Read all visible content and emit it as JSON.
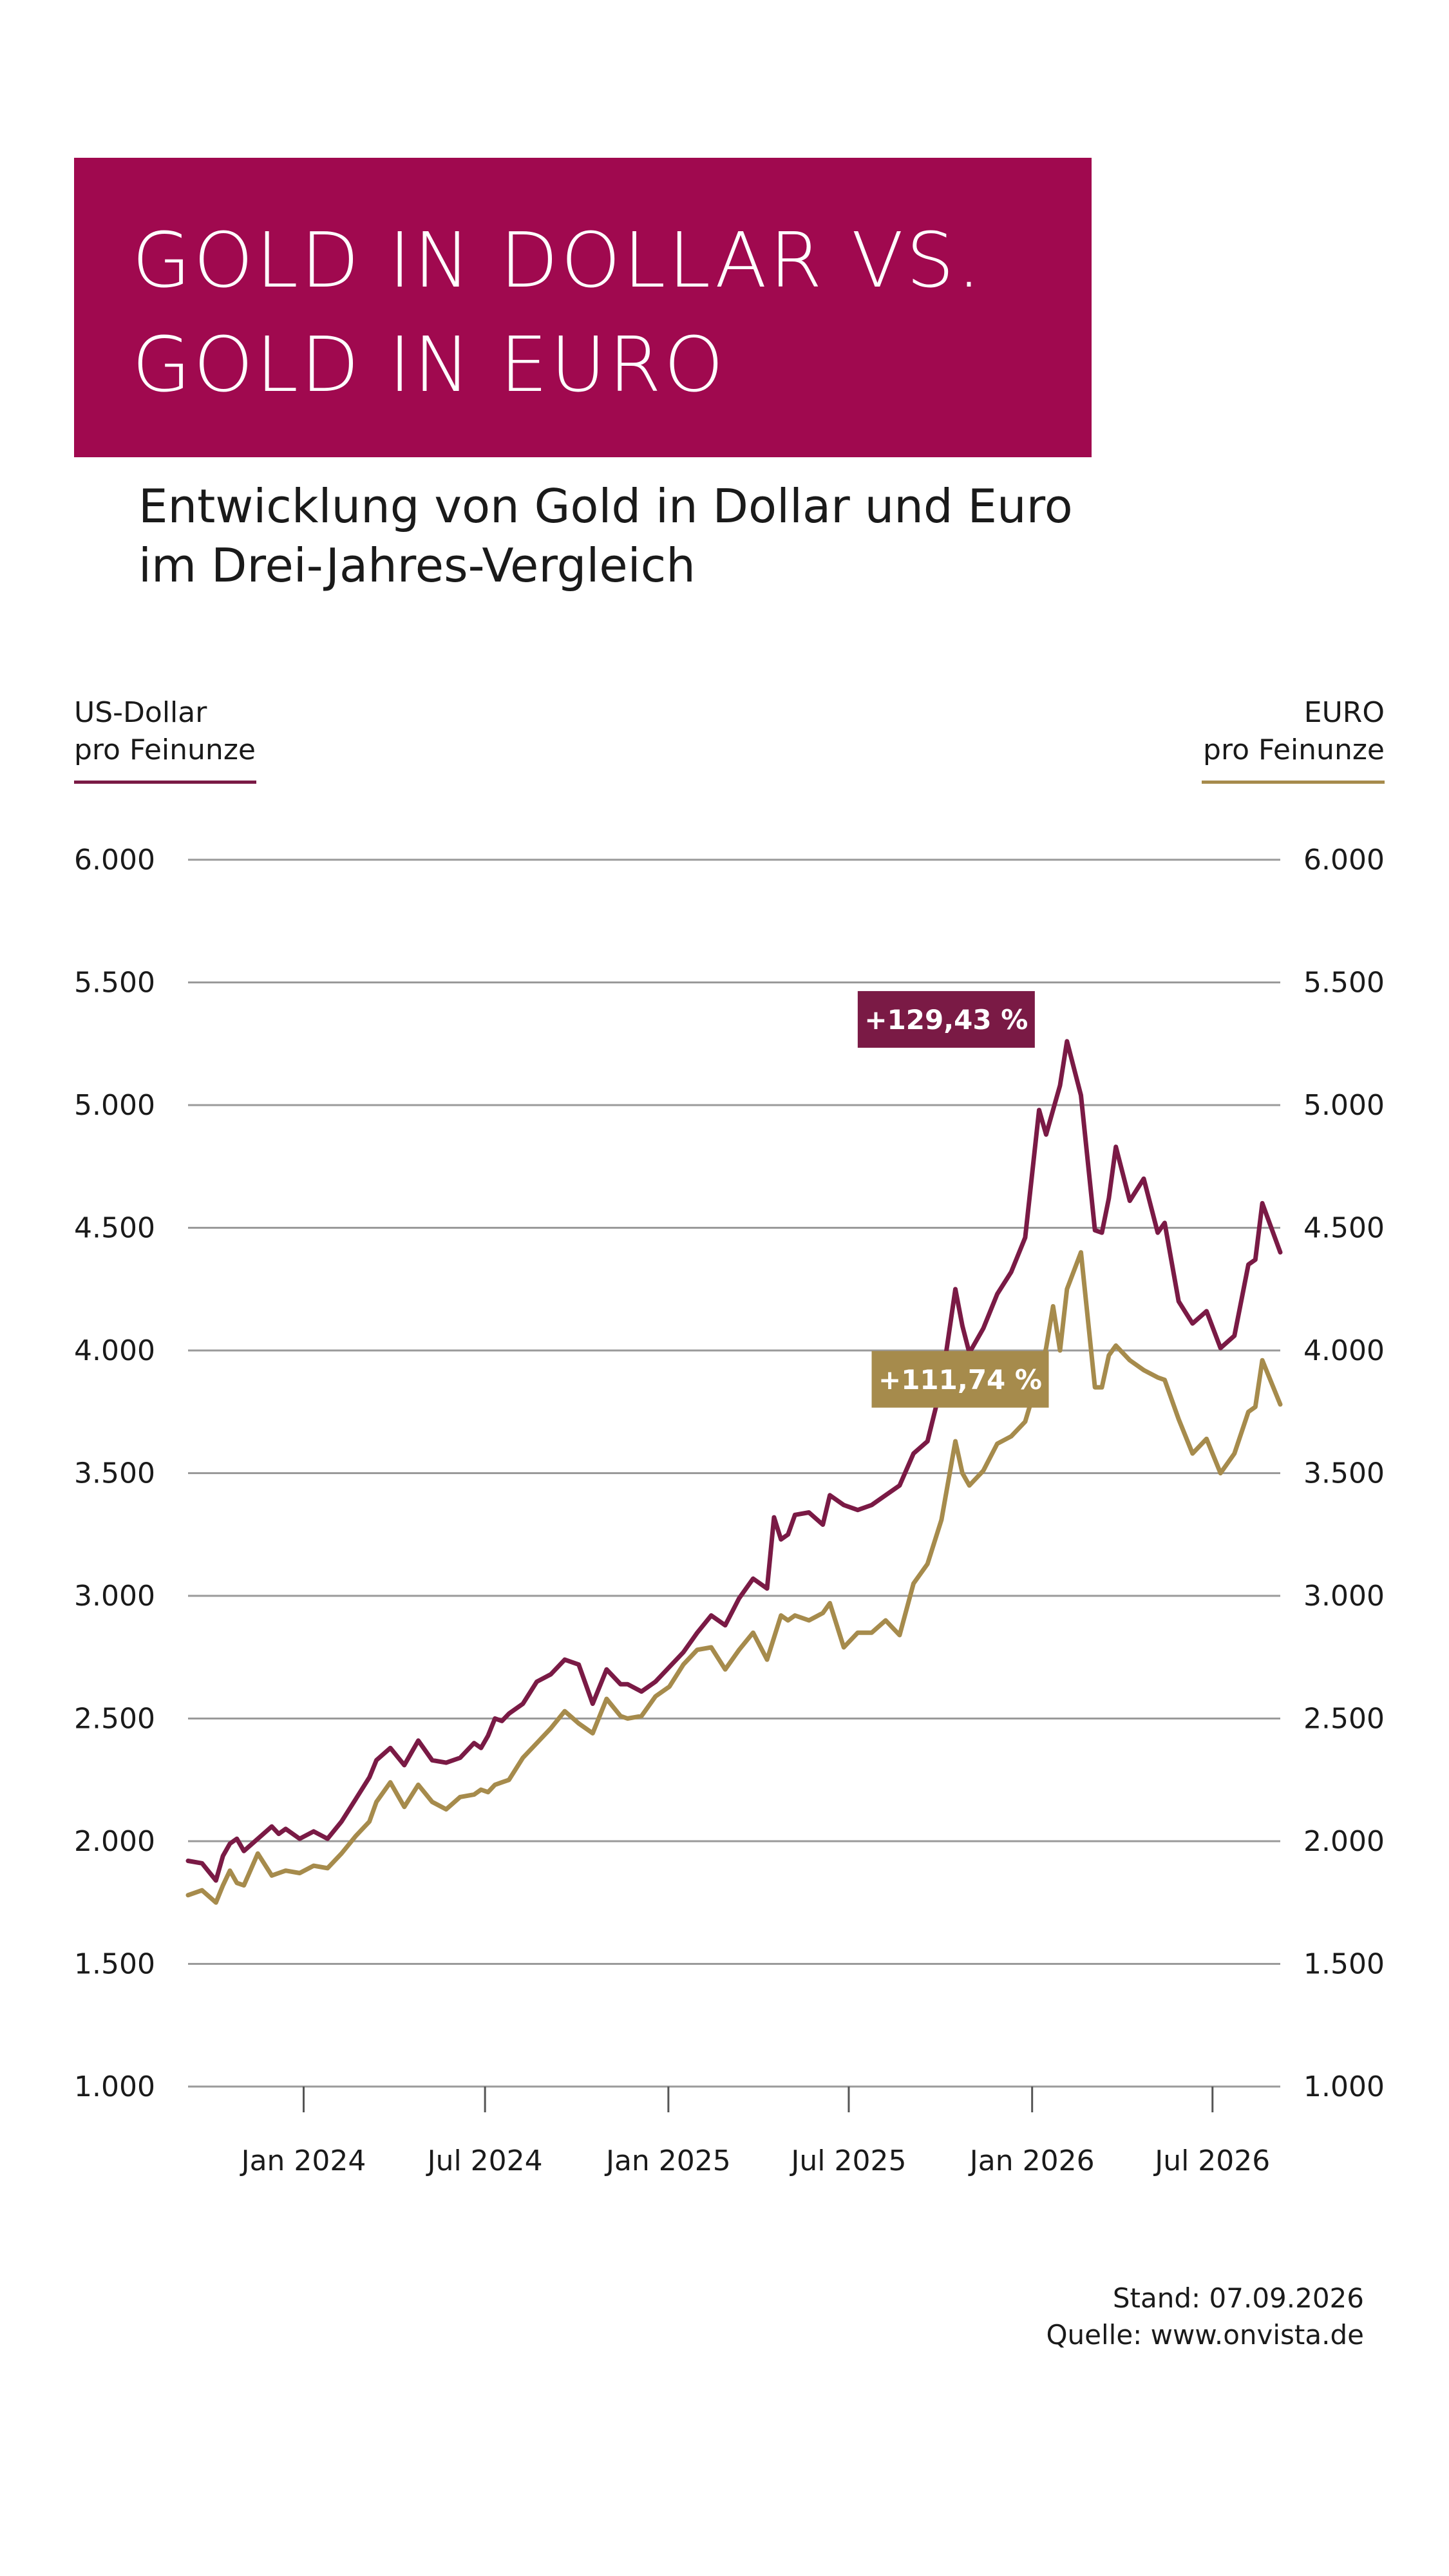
{
  "title": {
    "line1": "GOLD IN DOLLAR VS.",
    "line2": "GOLD IN EURO"
  },
  "subtitle": {
    "line1": "Entwicklung von Gold in Dollar und Euro",
    "line2": "im Drei-Jahres-Vergleich"
  },
  "axis_left": {
    "line1": "US-Dollar",
    "line2": "pro Feinunze"
  },
  "axis_right": {
    "line1": "EURO",
    "line2": "pro Feinunze"
  },
  "footer": {
    "stand": "Stand: 07.09.2026",
    "quelle": "Quelle: www.onvista.de"
  },
  "colors": {
    "background": "#ffffff",
    "title_box": "#a0094f",
    "usd": "#7a1a45",
    "eur": "#a68b4c",
    "grid": "#9a9a9a"
  },
  "chart_data": {
    "type": "line",
    "grid": true,
    "ylim": [
      1000,
      6000
    ],
    "y_ticks": [
      "6.000",
      "5.500",
      "5.000",
      "4.500",
      "4.000",
      "3.500",
      "3.000",
      "2.500",
      "2.000",
      "1.500",
      "1.000"
    ],
    "x_ticks": [
      "Jan 2024",
      "Jul 2024",
      "Jan 2025",
      "Jul 2025",
      "Jan 2026",
      "Jul 2026"
    ],
    "x_range": [
      "2023-09-07",
      "2026-09-07"
    ],
    "annotations": [
      {
        "series": 0,
        "text": "+129,43 %"
      },
      {
        "series": 1,
        "text": "+111,74 %"
      }
    ],
    "series": [
      {
        "name": "US-Dollar pro Feinunze",
        "color": "#7a1a45",
        "x": [
          "2023-09-07",
          "2023-09-21",
          "2023-10-05",
          "2023-10-12",
          "2023-10-19",
          "2023-10-26",
          "2023-11-02",
          "2023-11-16",
          "2023-11-30",
          "2023-12-07",
          "2023-12-14",
          "2023-12-28",
          "2024-01-11",
          "2024-01-25",
          "2024-02-08",
          "2024-02-22",
          "2024-03-07",
          "2024-03-14",
          "2024-03-28",
          "2024-04-11",
          "2024-04-25",
          "2024-05-09",
          "2024-05-23",
          "2024-06-06",
          "2024-06-20",
          "2024-06-27",
          "2024-07-04",
          "2024-07-11",
          "2024-07-18",
          "2024-07-25",
          "2024-08-08",
          "2024-08-22",
          "2024-09-05",
          "2024-09-19",
          "2024-10-03",
          "2024-10-17",
          "2024-10-31",
          "2024-11-14",
          "2024-11-21",
          "2024-12-05",
          "2024-12-19",
          "2025-01-02",
          "2025-01-16",
          "2025-01-30",
          "2025-02-13",
          "2025-02-27",
          "2025-03-13",
          "2025-03-27",
          "2025-04-10",
          "2025-04-17",
          "2025-04-24",
          "2025-05-01",
          "2025-05-08",
          "2025-05-22",
          "2025-06-05",
          "2025-06-12",
          "2025-06-26",
          "2025-07-10",
          "2025-07-24",
          "2025-08-07",
          "2025-08-21",
          "2025-09-04",
          "2025-09-18",
          "2025-10-02",
          "2025-10-16",
          "2025-10-23",
          "2025-10-30",
          "2025-11-13",
          "2025-11-27",
          "2025-12-11",
          "2025-12-25",
          "2026-01-08",
          "2026-01-15",
          "2026-01-22",
          "2026-01-29",
          "2026-02-05",
          "2026-02-19",
          "2026-03-05",
          "2026-03-12",
          "2026-03-19",
          "2026-03-26",
          "2026-04-09",
          "2026-04-23",
          "2026-05-07",
          "2026-05-14",
          "2026-05-28",
          "2026-06-11",
          "2026-06-25",
          "2026-07-09",
          "2026-07-23",
          "2026-08-06",
          "2026-08-13",
          "2026-08-20",
          "2026-09-07"
        ],
        "values": [
          1920,
          1910,
          1840,
          1940,
          1990,
          2010,
          1960,
          2010,
          2060,
          2030,
          2050,
          2010,
          2040,
          2010,
          2080,
          2170,
          2260,
          2330,
          2380,
          2310,
          2410,
          2330,
          2320,
          2340,
          2400,
          2380,
          2430,
          2500,
          2490,
          2520,
          2560,
          2650,
          2680,
          2740,
          2720,
          2560,
          2700,
          2640,
          2640,
          2610,
          2650,
          2710,
          2770,
          2850,
          2920,
          2880,
          2990,
          3070,
          3030,
          3320,
          3230,
          3250,
          3330,
          3340,
          3290,
          3410,
          3370,
          3350,
          3370,
          3410,
          3450,
          3580,
          3630,
          3860,
          4250,
          4100,
          3990,
          4090,
          4230,
          4320,
          4460,
          4980,
          4880,
          4980,
          5080,
          5260,
          5040,
          4490,
          4480,
          4620,
          4830,
          4610,
          4700,
          4480,
          4520,
          4200,
          4110,
          4160,
          4010,
          4060,
          4350,
          4370,
          4600,
          4400
        ],
        "label_value": "+129,43 %"
      },
      {
        "name": "EURO pro Feinunze",
        "color": "#a68b4c",
        "x": [
          "2023-09-07",
          "2023-09-21",
          "2023-10-05",
          "2023-10-12",
          "2023-10-19",
          "2023-10-26",
          "2023-11-02",
          "2023-11-16",
          "2023-11-30",
          "2023-12-07",
          "2023-12-14",
          "2023-12-28",
          "2024-01-11",
          "2024-01-25",
          "2024-02-08",
          "2024-02-22",
          "2024-03-07",
          "2024-03-14",
          "2024-03-28",
          "2024-04-11",
          "2024-04-25",
          "2024-05-09",
          "2024-05-23",
          "2024-06-06",
          "2024-06-20",
          "2024-06-27",
          "2024-07-04",
          "2024-07-11",
          "2024-07-18",
          "2024-07-25",
          "2024-08-08",
          "2024-08-22",
          "2024-09-05",
          "2024-09-19",
          "2024-10-03",
          "2024-10-17",
          "2024-10-31",
          "2024-11-14",
          "2024-11-21",
          "2024-12-05",
          "2024-12-19",
          "2025-01-02",
          "2025-01-16",
          "2025-01-30",
          "2025-02-13",
          "2025-02-27",
          "2025-03-13",
          "2025-03-27",
          "2025-04-10",
          "2025-04-17",
          "2025-04-24",
          "2025-05-01",
          "2025-05-08",
          "2025-05-22",
          "2025-06-05",
          "2025-06-12",
          "2025-06-26",
          "2025-07-10",
          "2025-07-24",
          "2025-08-07",
          "2025-08-21",
          "2025-09-04",
          "2025-09-18",
          "2025-10-02",
          "2025-10-16",
          "2025-10-23",
          "2025-10-30",
          "2025-11-13",
          "2025-11-27",
          "2025-12-11",
          "2025-12-25",
          "2026-01-08",
          "2026-01-15",
          "2026-01-22",
          "2026-01-29",
          "2026-02-05",
          "2026-02-19",
          "2026-03-05",
          "2026-03-12",
          "2026-03-19",
          "2026-03-26",
          "2026-04-09",
          "2026-04-23",
          "2026-05-07",
          "2026-05-14",
          "2026-05-28",
          "2026-06-11",
          "2026-06-25",
          "2026-07-09",
          "2026-07-23",
          "2026-08-06",
          "2026-08-13",
          "2026-08-20",
          "2026-09-07"
        ],
        "values": [
          1780,
          1800,
          1750,
          1820,
          1880,
          1830,
          1820,
          1950,
          1860,
          1870,
          1880,
          1870,
          1900,
          1890,
          1950,
          2020,
          2080,
          2160,
          2240,
          2140,
          2230,
          2160,
          2130,
          2180,
          2190,
          2210,
          2200,
          2230,
          2240,
          2250,
          2340,
          2400,
          2460,
          2530,
          2480,
          2440,
          2580,
          2510,
          2500,
          2510,
          2590,
          2630,
          2720,
          2780,
          2790,
          2700,
          2780,
          2850,
          2740,
          2830,
          2920,
          2900,
          2920,
          2900,
          2930,
          2970,
          2790,
          2850,
          2850,
          2900,
          2840,
          3050,
          3130,
          3310,
          3630,
          3500,
          3450,
          3510,
          3620,
          3650,
          3710,
          3900,
          4010,
          4180,
          4000,
          4250,
          4400,
          3850,
          3850,
          3980,
          4020,
          3960,
          3920,
          3890,
          3880,
          3720,
          3580,
          3640,
          3500,
          3580,
          3750,
          3770,
          3960,
          3780
        ],
        "label_value": "+111,74 %"
      }
    ]
  }
}
